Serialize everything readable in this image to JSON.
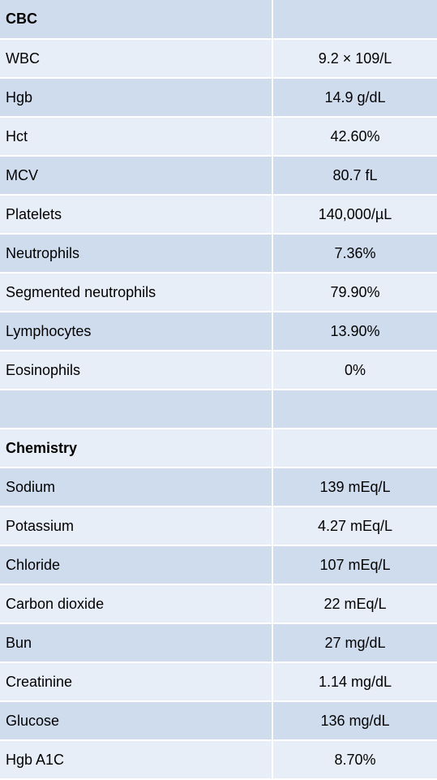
{
  "rows": [
    {
      "label": "CBC",
      "value": "",
      "kind": "header",
      "shade": "dark"
    },
    {
      "label": "WBC",
      "value": "9.2 × 109/L",
      "kind": "data",
      "shade": "light"
    },
    {
      "label": "Hgb",
      "value": "14.9 g/dL",
      "kind": "data",
      "shade": "dark"
    },
    {
      "label": "Hct",
      "value": "42.60%",
      "kind": "data",
      "shade": "light"
    },
    {
      "label": "MCV",
      "value": "80.7 fL",
      "kind": "data",
      "shade": "dark"
    },
    {
      "label": "Platelets",
      "value": "140,000/µL",
      "kind": "data",
      "shade": "light"
    },
    {
      "label": "Neutrophils",
      "value": "7.36%",
      "kind": "data",
      "shade": "dark"
    },
    {
      "label": "Segmented neutrophils",
      "value": "79.90%",
      "kind": "data",
      "shade": "light"
    },
    {
      "label": "Lymphocytes",
      "value": "13.90%",
      "kind": "data",
      "shade": "dark"
    },
    {
      "label": "Eosinophils",
      "value": "0%",
      "kind": "data",
      "shade": "light"
    },
    {
      "label": "",
      "value": "",
      "kind": "spacer",
      "shade": "dark"
    },
    {
      "label": "Chemistry",
      "value": "",
      "kind": "header",
      "shade": "light"
    },
    {
      "label": "Sodium",
      "value": "139 mEq/L",
      "kind": "data",
      "shade": "dark"
    },
    {
      "label": "Potassium",
      "value": "4.27 mEq/L",
      "kind": "data",
      "shade": "light"
    },
    {
      "label": "Chloride",
      "value": "107 mEq/L",
      "kind": "data",
      "shade": "dark"
    },
    {
      "label": "Carbon dioxide",
      "value": "22 mEq/L",
      "kind": "data",
      "shade": "light"
    },
    {
      "label": "Bun",
      "value": "27 mg/dL",
      "kind": "data",
      "shade": "dark"
    },
    {
      "label": "Creatinine",
      "value": "1.14 mg/dL",
      "kind": "data",
      "shade": "light"
    },
    {
      "label": "Glucose",
      "value": "136 mg/dL",
      "kind": "data",
      "shade": "dark"
    },
    {
      "label": "Hgb A1C",
      "value": "8.70%",
      "kind": "data",
      "shade": "light"
    }
  ],
  "colors": {
    "dark_row": "#cfdcee",
    "light_row": "#e8eef7",
    "gridline": "#ffffff"
  }
}
